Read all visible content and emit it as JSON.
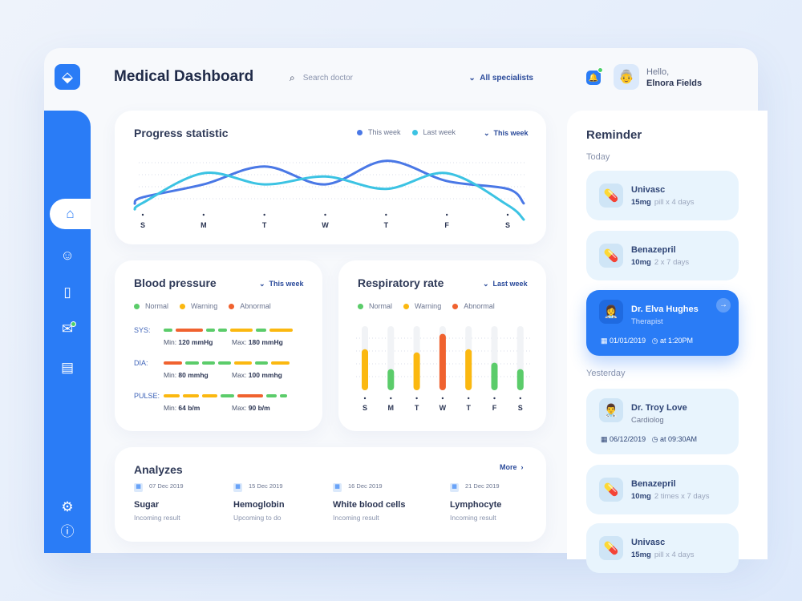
{
  "header": {
    "title": "Medical Dashboard",
    "search_placeholder": "Search doctor",
    "specialists": "All specialists",
    "greeting": "Hello,",
    "user": "Elnora Fields"
  },
  "sidebar": {
    "items": [
      "home",
      "doctors",
      "clipboard",
      "messages",
      "inbox"
    ],
    "bottom": [
      "settings",
      "info"
    ],
    "active": "home"
  },
  "progress": {
    "title": "Progress statistic",
    "legend": [
      "This week",
      "Last week"
    ],
    "filter": "This week",
    "days": [
      "S",
      "M",
      "T",
      "W",
      "T",
      "F",
      "S"
    ],
    "chart_data": {
      "type": "line",
      "categories": [
        "S",
        "M",
        "T",
        "W",
        "T",
        "F",
        "S"
      ],
      "series": [
        {
          "name": "This week",
          "values": [
            24,
            47,
            79,
            47,
            89,
            53,
            39
          ],
          "color": "#4a78e6"
        },
        {
          "name": "Last week",
          "values": [
            14,
            67,
            47,
            61,
            39,
            67,
            10
          ],
          "color": "#3cc3e3"
        }
      ]
    }
  },
  "legend": {
    "normal": "Normal",
    "warning": "Warning",
    "abnormal": "Abnormal"
  },
  "colors": {
    "normal": "#5bcc6a",
    "warning": "#fbb810",
    "abnormal": "#f0622f",
    "accent": "#2a7cf6"
  },
  "blood": {
    "title": "Blood pressure",
    "filter": "This week",
    "rows": [
      {
        "label": "SYS:",
        "min": "Min: ",
        "minv": "120 mmHg",
        "max": "Max: ",
        "maxv": "180 mmHg",
        "segs": [
          [
            "normal",
            12
          ],
          [
            "abnormal",
            38
          ],
          [
            "normal",
            12
          ],
          [
            "normal",
            12
          ],
          [
            "warning",
            32
          ],
          [
            "normal",
            14
          ],
          [
            "warning",
            32
          ]
        ]
      },
      {
        "label": "DIA:",
        "min": "Min: ",
        "minv": "80 mmhg",
        "max": "Max: ",
        "maxv": "100 mmhg",
        "segs": [
          [
            "abnormal",
            26
          ],
          [
            "normal",
            18
          ],
          [
            "normal",
            18
          ],
          [
            "normal",
            18
          ],
          [
            "warning",
            24
          ],
          [
            "normal",
            18
          ],
          [
            "warning",
            26
          ]
        ]
      },
      {
        "label": "PULSE:",
        "min": "Min: ",
        "minv": "64 b/m",
        "max": "Max: ",
        "maxv": "90 b/m",
        "segs": [
          [
            "warning",
            22
          ],
          [
            "warning",
            22
          ],
          [
            "warning",
            22
          ],
          [
            "normal",
            18
          ],
          [
            "abnormal",
            36
          ],
          [
            "normal",
            14
          ],
          [
            "normal",
            10
          ]
        ]
      }
    ]
  },
  "resp": {
    "title": "Respiratory rate",
    "filter": "Last week",
    "days": [
      "S",
      "M",
      "T",
      "W",
      "T",
      "F",
      "S"
    ],
    "chart_data": {
      "type": "bar",
      "categories": [
        "S",
        "M",
        "T",
        "W",
        "T",
        "F",
        "S"
      ],
      "values": [
        0.64,
        0.33,
        0.59,
        0.88,
        0.64,
        0.43,
        0.33
      ],
      "status": [
        "warning",
        "normal",
        "warning",
        "abnormal",
        "warning",
        "normal",
        "normal"
      ]
    }
  },
  "analyzes": {
    "title": "Analyzes",
    "more": "More",
    "items": [
      {
        "date": "07 Dec 2019",
        "name": "Sugar",
        "status": "Incoming result"
      },
      {
        "date": "15 Dec 2019",
        "name": "Hemoglobin",
        "status": "Upcoming to do"
      },
      {
        "date": "16 Dec 2019",
        "name": "White blood cells",
        "status": "Incoming result"
      },
      {
        "date": "21 Dec 2019",
        "name": "Lymphocyte",
        "status": "Incoming result"
      }
    ]
  },
  "reminder": {
    "title": "Reminder",
    "today": "Today",
    "yesterday": "Yesterday",
    "items": [
      {
        "name": "Univasc",
        "dose": "15mg",
        "detail": "pill x 4 days"
      },
      {
        "name": "Benazepril",
        "dose": "10mg",
        "detail": "2 x 7 days"
      },
      {
        "name": "Dr. Elva Hughes",
        "role": "Therapist",
        "date": "01/01/2019",
        "time": "at 1:20PM"
      },
      {
        "name": "Dr. Troy Love",
        "role": "Cardiolog",
        "date": "06/12/2019",
        "time": "at 09:30AM"
      },
      {
        "name": "Benazepril",
        "dose": "10mg",
        "detail": "2 times  x 7 days"
      },
      {
        "name": "Univasc",
        "dose": "15mg",
        "detail": "pill x 4 days"
      }
    ]
  }
}
